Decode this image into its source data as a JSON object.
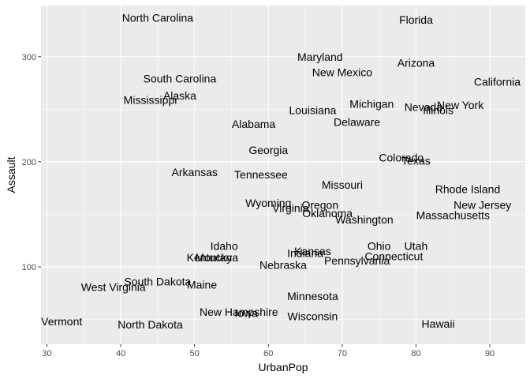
{
  "chart_data": {
    "type": "scatter",
    "xlabel": "UrbanPop",
    "ylabel": "Assault",
    "xlim": [
      29.2,
      94.8
    ],
    "ylim": [
      26.35,
      348.65
    ],
    "x_ticks": [
      30,
      40,
      50,
      60,
      70,
      80,
      90
    ],
    "y_ticks": [
      100,
      200,
      300
    ],
    "grid": true,
    "points": [
      {
        "label": "Alabama",
        "x": 58,
        "y": 236
      },
      {
        "label": "Alaska",
        "x": 48,
        "y": 263
      },
      {
        "label": "Arizona",
        "x": 80,
        "y": 294
      },
      {
        "label": "Arkansas",
        "x": 50,
        "y": 190
      },
      {
        "label": "California",
        "x": 91,
        "y": 276
      },
      {
        "label": "Colorado",
        "x": 78,
        "y": 204
      },
      {
        "label": "Connecticut",
        "x": 77,
        "y": 110
      },
      {
        "label": "Delaware",
        "x": 72,
        "y": 238
      },
      {
        "label": "Florida",
        "x": 80,
        "y": 335
      },
      {
        "label": "Georgia",
        "x": 60,
        "y": 211
      },
      {
        "label": "Hawaii",
        "x": 83,
        "y": 46
      },
      {
        "label": "Idaho",
        "x": 54,
        "y": 120
      },
      {
        "label": "Illinois",
        "x": 83,
        "y": 249
      },
      {
        "label": "Indiana",
        "x": 65,
        "y": 113
      },
      {
        "label": "Iowa",
        "x": 57,
        "y": 56
      },
      {
        "label": "Kansas",
        "x": 66,
        "y": 115
      },
      {
        "label": "Kentucky",
        "x": 52,
        "y": 109
      },
      {
        "label": "Louisiana",
        "x": 66,
        "y": 249
      },
      {
        "label": "Maine",
        "x": 51,
        "y": 83
      },
      {
        "label": "Maryland",
        "x": 67,
        "y": 300
      },
      {
        "label": "Massachusetts",
        "x": 85,
        "y": 149
      },
      {
        "label": "Michigan",
        "x": 74,
        "y": 255
      },
      {
        "label": "Minnesota",
        "x": 66,
        "y": 72
      },
      {
        "label": "Mississippi",
        "x": 44,
        "y": 259
      },
      {
        "label": "Missouri",
        "x": 70,
        "y": 178
      },
      {
        "label": "Montana",
        "x": 53,
        "y": 109
      },
      {
        "label": "Nebraska",
        "x": 62,
        "y": 102
      },
      {
        "label": "Nevada",
        "x": 81,
        "y": 252
      },
      {
        "label": "New Hampshire",
        "x": 56,
        "y": 57
      },
      {
        "label": "New Jersey",
        "x": 89,
        "y": 159
      },
      {
        "label": "New Mexico",
        "x": 70,
        "y": 285
      },
      {
        "label": "New York",
        "x": 86,
        "y": 254
      },
      {
        "label": "North Carolina",
        "x": 45,
        "y": 337
      },
      {
        "label": "North Dakota",
        "x": 44,
        "y": 45
      },
      {
        "label": "Ohio",
        "x": 75,
        "y": 120
      },
      {
        "label": "Oklahoma",
        "x": 68,
        "y": 151
      },
      {
        "label": "Oregon",
        "x": 67,
        "y": 159
      },
      {
        "label": "Pennsylvania",
        "x": 72,
        "y": 106
      },
      {
        "label": "Rhode Island",
        "x": 87,
        "y": 174
      },
      {
        "label": "South Carolina",
        "x": 48,
        "y": 279
      },
      {
        "label": "South Dakota",
        "x": 45,
        "y": 86
      },
      {
        "label": "Tennessee",
        "x": 59,
        "y": 188
      },
      {
        "label": "Texas",
        "x": 80,
        "y": 201
      },
      {
        "label": "Utah",
        "x": 80,
        "y": 120
      },
      {
        "label": "Vermont",
        "x": 32,
        "y": 48
      },
      {
        "label": "Virginia",
        "x": 63,
        "y": 156
      },
      {
        "label": "Washington",
        "x": 73,
        "y": 145
      },
      {
        "label": "West Virginia",
        "x": 39,
        "y": 81
      },
      {
        "label": "Wisconsin",
        "x": 66,
        "y": 53
      },
      {
        "label": "Wyoming",
        "x": 60,
        "y": 161
      }
    ]
  }
}
